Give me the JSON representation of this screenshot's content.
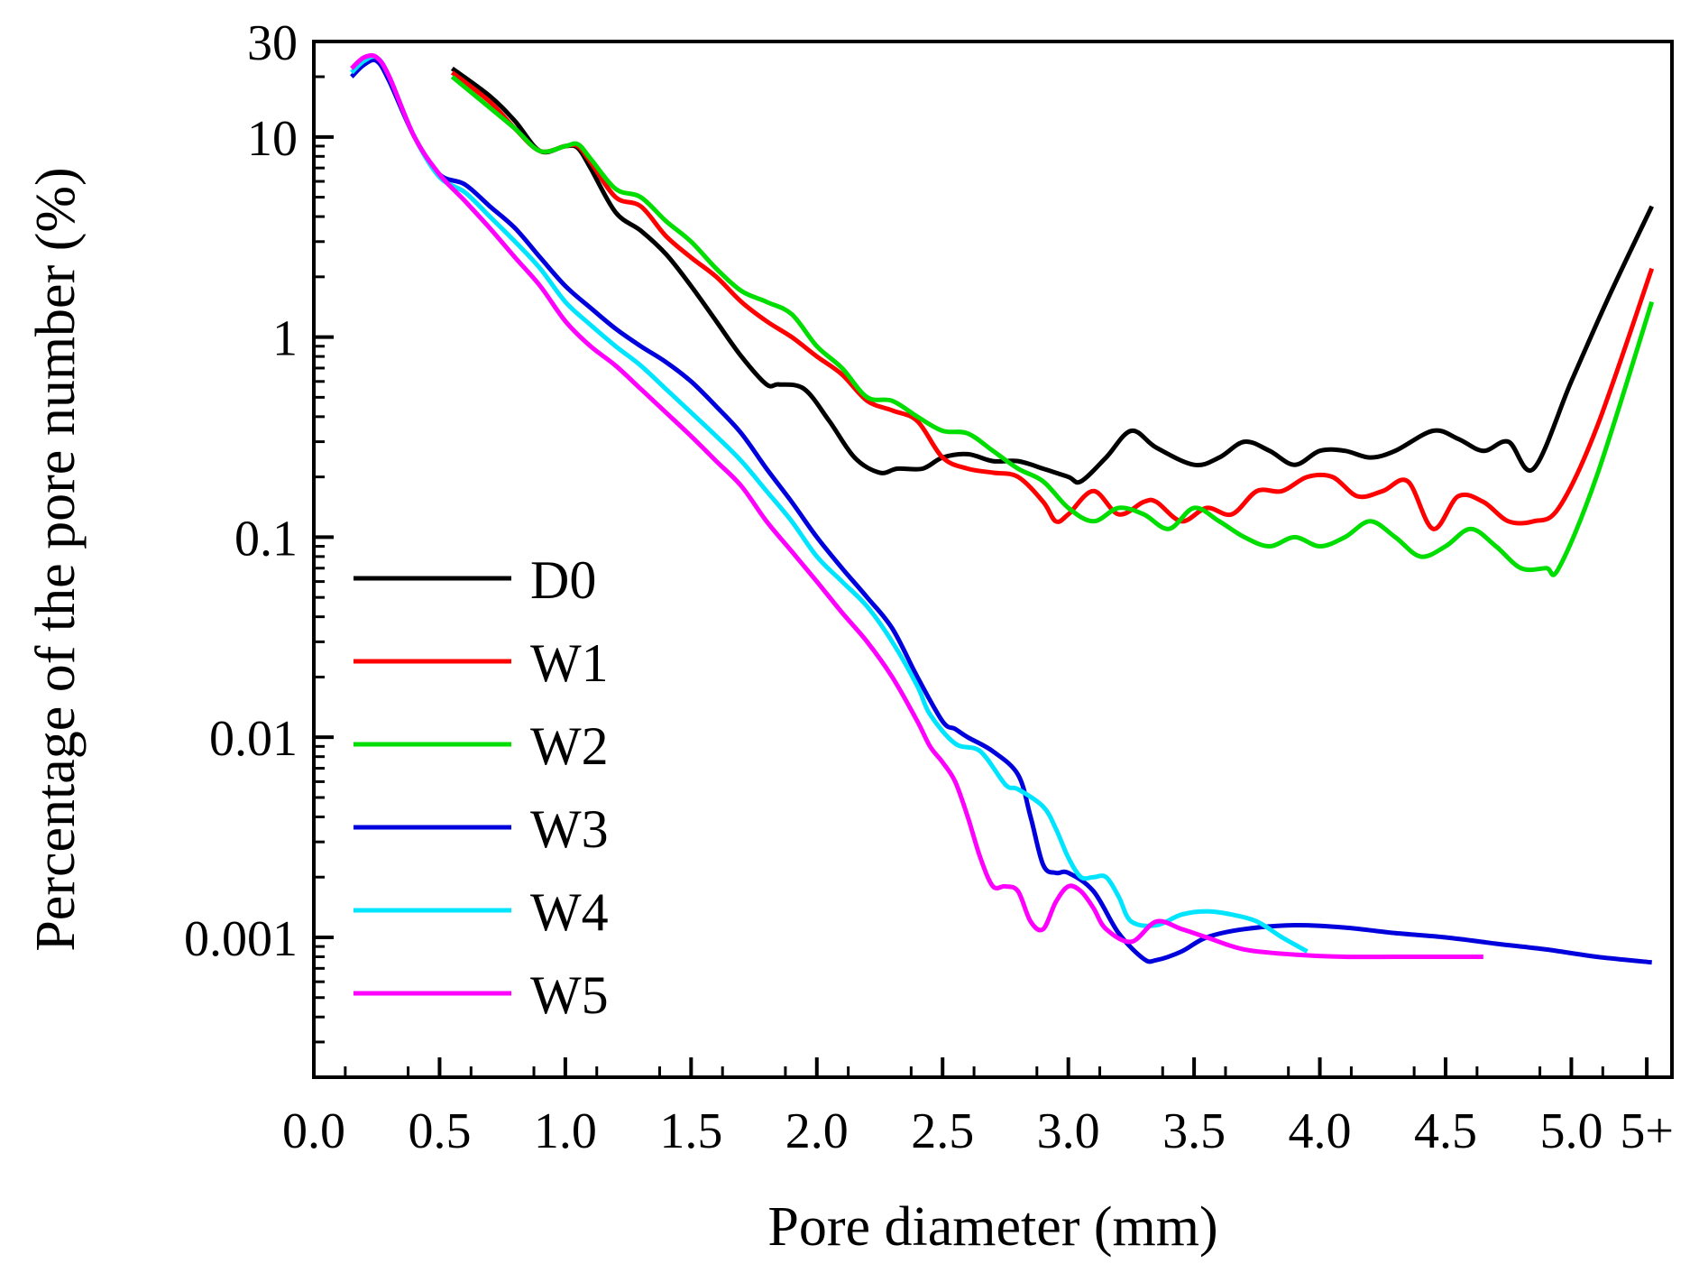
{
  "chart_data": {
    "type": "line",
    "title": "",
    "xlabel": "Pore diameter (mm)",
    "ylabel": "Percentage of the pore number (%)",
    "yscale": "log",
    "xlim": [
      0,
      5.4
    ],
    "ylim": [
      0.0002,
      30
    ],
    "x_ticks": [
      0,
      0.5,
      1.0,
      1.5,
      2.0,
      2.5,
      3.0,
      3.5,
      4.0,
      4.5,
      5.0,
      5.3
    ],
    "x_tick_labels": [
      "0.0",
      "0.5",
      "1.0",
      "1.5",
      "2.0",
      "2.5",
      "3.0",
      "3.5",
      "4.0",
      "4.5",
      "5.0",
      "5+"
    ],
    "y_ticks": [
      0.001,
      0.01,
      0.1,
      1,
      10,
      30
    ],
    "y_tick_labels": [
      "0.001",
      "0.01",
      "0.1",
      "1",
      "10",
      "30"
    ],
    "grid": false,
    "legend_position": "bottom-left",
    "series": [
      {
        "name": "D0",
        "color": "#000000",
        "x": [
          0.55,
          0.7,
          0.8,
          0.9,
          1.0,
          1.05,
          1.1,
          1.2,
          1.3,
          1.4,
          1.5,
          1.6,
          1.7,
          1.8,
          1.85,
          1.95,
          2.05,
          2.15,
          2.25,
          2.32,
          2.42,
          2.5,
          2.6,
          2.7,
          2.8,
          2.9,
          3.0,
          3.05,
          3.15,
          3.25,
          3.35,
          3.5,
          3.6,
          3.7,
          3.8,
          3.9,
          4.0,
          4.1,
          4.2,
          4.3,
          4.45,
          4.55,
          4.65,
          4.75,
          4.85,
          5.0,
          5.15,
          5.32
        ],
        "y": [
          22,
          16,
          12,
          8.5,
          9.0,
          8.8,
          7.0,
          4.2,
          3.4,
          2.6,
          1.8,
          1.2,
          0.8,
          0.58,
          0.58,
          0.55,
          0.38,
          0.25,
          0.21,
          0.22,
          0.22,
          0.25,
          0.26,
          0.24,
          0.24,
          0.22,
          0.2,
          0.19,
          0.25,
          0.34,
          0.28,
          0.23,
          0.25,
          0.3,
          0.27,
          0.23,
          0.27,
          0.27,
          0.25,
          0.27,
          0.34,
          0.31,
          0.27,
          0.3,
          0.22,
          0.6,
          1.6,
          4.5
        ]
      },
      {
        "name": "W1",
        "color": "#ff0000",
        "x": [
          0.55,
          0.7,
          0.8,
          0.9,
          1.0,
          1.05,
          1.1,
          1.2,
          1.3,
          1.4,
          1.5,
          1.6,
          1.7,
          1.8,
          1.9,
          2.0,
          2.1,
          2.2,
          2.3,
          2.4,
          2.5,
          2.6,
          2.7,
          2.8,
          2.9,
          2.95,
          3.0,
          3.1,
          3.2,
          3.3,
          3.35,
          3.45,
          3.55,
          3.65,
          3.75,
          3.85,
          3.95,
          4.05,
          4.15,
          4.25,
          4.35,
          4.45,
          4.55,
          4.65,
          4.75,
          4.85,
          4.95,
          5.1,
          5.32
        ],
        "y": [
          21,
          15,
          11,
          8.5,
          9.0,
          9.0,
          7.5,
          5.0,
          4.5,
          3.2,
          2.5,
          2.0,
          1.5,
          1.2,
          1.0,
          0.8,
          0.65,
          0.48,
          0.43,
          0.38,
          0.25,
          0.22,
          0.21,
          0.2,
          0.15,
          0.12,
          0.13,
          0.17,
          0.13,
          0.15,
          0.15,
          0.12,
          0.14,
          0.13,
          0.17,
          0.17,
          0.2,
          0.2,
          0.16,
          0.17,
          0.19,
          0.11,
          0.16,
          0.15,
          0.12,
          0.12,
          0.14,
          0.35,
          2.2
        ]
      },
      {
        "name": "W2",
        "color": "#00dd00",
        "x": [
          0.55,
          0.7,
          0.8,
          0.9,
          1.0,
          1.05,
          1.1,
          1.2,
          1.3,
          1.4,
          1.5,
          1.6,
          1.7,
          1.8,
          1.9,
          2.0,
          2.1,
          2.2,
          2.3,
          2.4,
          2.5,
          2.6,
          2.7,
          2.8,
          2.9,
          3.0,
          3.1,
          3.2,
          3.3,
          3.4,
          3.5,
          3.6,
          3.7,
          3.8,
          3.9,
          4.0,
          4.1,
          4.2,
          4.3,
          4.4,
          4.5,
          4.6,
          4.7,
          4.8,
          4.9,
          4.95,
          5.1,
          5.32
        ],
        "y": [
          20,
          14,
          11,
          8.5,
          9.0,
          9.2,
          7.8,
          5.5,
          5.0,
          3.8,
          3.0,
          2.2,
          1.7,
          1.5,
          1.3,
          0.9,
          0.7,
          0.5,
          0.48,
          0.4,
          0.34,
          0.33,
          0.27,
          0.22,
          0.19,
          0.14,
          0.12,
          0.14,
          0.13,
          0.11,
          0.14,
          0.12,
          0.1,
          0.09,
          0.1,
          0.09,
          0.1,
          0.12,
          0.1,
          0.08,
          0.09,
          0.11,
          0.09,
          0.07,
          0.07,
          0.07,
          0.2,
          1.5
        ]
      },
      {
        "name": "W3",
        "color": "#0000dd",
        "x": [
          0.15,
          0.2,
          0.25,
          0.3,
          0.4,
          0.5,
          0.6,
          0.7,
          0.8,
          0.9,
          1.0,
          1.1,
          1.2,
          1.3,
          1.4,
          1.5,
          1.6,
          1.7,
          1.8,
          1.9,
          2.0,
          2.1,
          2.2,
          2.3,
          2.4,
          2.5,
          2.55,
          2.6,
          2.7,
          2.8,
          2.85,
          2.9,
          2.95,
          3.0,
          3.1,
          3.2,
          3.3,
          3.35,
          3.45,
          3.55,
          3.7,
          3.9,
          4.1,
          4.3,
          4.5,
          4.7,
          4.9,
          5.1,
          5.32
        ],
        "y": [
          20,
          23,
          24,
          19,
          10,
          6.5,
          5.8,
          4.5,
          3.5,
          2.5,
          1.8,
          1.4,
          1.1,
          0.9,
          0.75,
          0.6,
          0.45,
          0.33,
          0.22,
          0.15,
          0.1,
          0.07,
          0.05,
          0.035,
          0.02,
          0.012,
          0.011,
          0.01,
          0.0085,
          0.0065,
          0.004,
          0.0023,
          0.0021,
          0.0021,
          0.0017,
          0.00105,
          0.00078,
          0.00077,
          0.00085,
          0.001,
          0.0011,
          0.00115,
          0.00112,
          0.00105,
          0.001,
          0.00093,
          0.00087,
          0.0008,
          0.00075
        ]
      },
      {
        "name": "W4",
        "color": "#00e5ff",
        "x": [
          0.15,
          0.2,
          0.25,
          0.3,
          0.4,
          0.5,
          0.6,
          0.7,
          0.8,
          0.9,
          1.0,
          1.1,
          1.2,
          1.3,
          1.4,
          1.5,
          1.6,
          1.7,
          1.8,
          1.9,
          2.0,
          2.1,
          2.2,
          2.3,
          2.4,
          2.45,
          2.55,
          2.65,
          2.75,
          2.8,
          2.9,
          2.95,
          3.0,
          3.05,
          3.1,
          3.15,
          3.2,
          3.25,
          3.35,
          3.45,
          3.55,
          3.65,
          3.75,
          3.85,
          3.95
        ],
        "y": [
          21,
          24,
          25,
          20,
          10,
          6.3,
          5.3,
          4.0,
          3.0,
          2.2,
          1.5,
          1.15,
          0.9,
          0.72,
          0.55,
          0.42,
          0.32,
          0.24,
          0.17,
          0.12,
          0.08,
          0.06,
          0.045,
          0.03,
          0.018,
          0.013,
          0.0093,
          0.0085,
          0.0058,
          0.0055,
          0.0045,
          0.0035,
          0.0025,
          0.002,
          0.002,
          0.002,
          0.0016,
          0.0012,
          0.00115,
          0.0013,
          0.00135,
          0.0013,
          0.0012,
          0.001,
          0.00085
        ]
      },
      {
        "name": "W5",
        "color": "#ff00ff",
        "x": [
          0.15,
          0.2,
          0.25,
          0.3,
          0.4,
          0.5,
          0.6,
          0.7,
          0.8,
          0.9,
          1.0,
          1.1,
          1.2,
          1.3,
          1.4,
          1.5,
          1.6,
          1.7,
          1.8,
          1.9,
          2.0,
          2.1,
          2.2,
          2.3,
          2.4,
          2.45,
          2.5,
          2.55,
          2.6,
          2.65,
          2.7,
          2.75,
          2.8,
          2.85,
          2.9,
          2.95,
          3.0,
          3.05,
          3.1,
          3.15,
          3.25,
          3.35,
          3.45,
          3.55,
          3.7,
          3.9,
          4.1,
          4.3,
          4.5,
          4.65
        ],
        "y": [
          22,
          25,
          25,
          20,
          10,
          6.5,
          4.8,
          3.5,
          2.5,
          1.8,
          1.2,
          0.9,
          0.72,
          0.55,
          0.42,
          0.32,
          0.24,
          0.18,
          0.12,
          0.085,
          0.06,
          0.042,
          0.03,
          0.02,
          0.012,
          0.009,
          0.0075,
          0.006,
          0.004,
          0.0025,
          0.0018,
          0.0018,
          0.0017,
          0.0012,
          0.0011,
          0.0015,
          0.0018,
          0.0017,
          0.0014,
          0.0011,
          0.00095,
          0.0012,
          0.0011,
          0.001,
          0.00087,
          0.00082,
          0.0008,
          0.0008,
          0.0008,
          0.0008
        ]
      }
    ]
  }
}
